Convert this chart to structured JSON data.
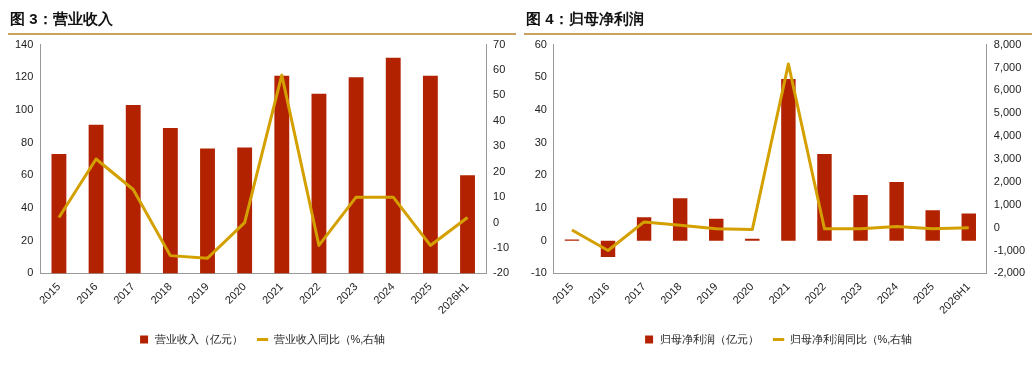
{
  "chart_data": [
    {
      "type": "bar",
      "title": "图 3：营业收入",
      "categories": [
        "2015",
        "2016",
        "2017",
        "2018",
        "2019",
        "2020",
        "2021",
        "2022",
        "2023",
        "2024",
        "2025",
        "2026H1"
      ],
      "series": [
        {
          "name": "营业收入（亿元）",
          "color": "#b22200",
          "values": [
            73,
            91,
            103,
            89,
            76.5,
            77,
            121,
            110,
            120,
            132,
            121,
            60
          ]
        },
        {
          "name": "营业收入同比（%,右轴",
          "type": "line",
          "axis": "y2",
          "color": "#d4a000",
          "values": [
            2,
            25,
            13,
            -13,
            -14,
            0,
            58,
            -9,
            10,
            10,
            -9,
            2
          ]
        }
      ],
      "ylim": [
        0,
        140
      ],
      "yticks": [
        0,
        20,
        40,
        60,
        80,
        100,
        120,
        140
      ],
      "y2lim": [
        -20,
        70
      ],
      "y2ticks": [
        -20,
        -10,
        0,
        10,
        20,
        30,
        40,
        50,
        60,
        70
      ],
      "grid": false,
      "legend": "bottom",
      "marker": "none"
    },
    {
      "type": "bar",
      "title": "图 4：归母净利润",
      "categories": [
        "2015",
        "2016",
        "2017",
        "2018",
        "2019",
        "2020",
        "2021",
        "2022",
        "2023",
        "2024",
        "2025",
        "2026H1"
      ],
      "series": [
        {
          "name": "归母净利润（亿元）",
          "color": "#b22200",
          "values": [
            0.4,
            -5,
            7.2,
            13,
            6.7,
            0.6,
            49.5,
            26.5,
            14,
            18,
            9.3,
            8.3
          ]
        },
        {
          "name": "归母净利润同比（%,右轴",
          "type": "line",
          "axis": "y2",
          "color": "#d4a000",
          "values": [
            -100,
            -1000,
            250,
            100,
            -50,
            -80,
            7150,
            -50,
            -50,
            50,
            -50,
            0
          ]
        }
      ],
      "ylim": [
        -10,
        60
      ],
      "yticks": [
        -10,
        0,
        10,
        20,
        30,
        40,
        50,
        60
      ],
      "y2lim": [
        -2000,
        8000
      ],
      "y2ticks": [
        {
          "value": -2000,
          "label": "-2,000"
        },
        {
          "value": -1000,
          "label": "-1,000"
        },
        0,
        {
          "value": 1000,
          "label": "1,000"
        },
        {
          "value": 2000,
          "label": "2,000"
        },
        {
          "value": 3000,
          "label": "3,000"
        },
        {
          "value": 4000,
          "label": "4,000"
        },
        {
          "value": 5000,
          "label": "5,000"
        },
        {
          "value": 6000,
          "label": "6,000"
        },
        {
          "value": 7000,
          "label": "7,000"
        },
        {
          "value": 8000,
          "label": "8,000"
        }
      ],
      "grid": false,
      "legend": "bottom",
      "marker": "none"
    }
  ]
}
